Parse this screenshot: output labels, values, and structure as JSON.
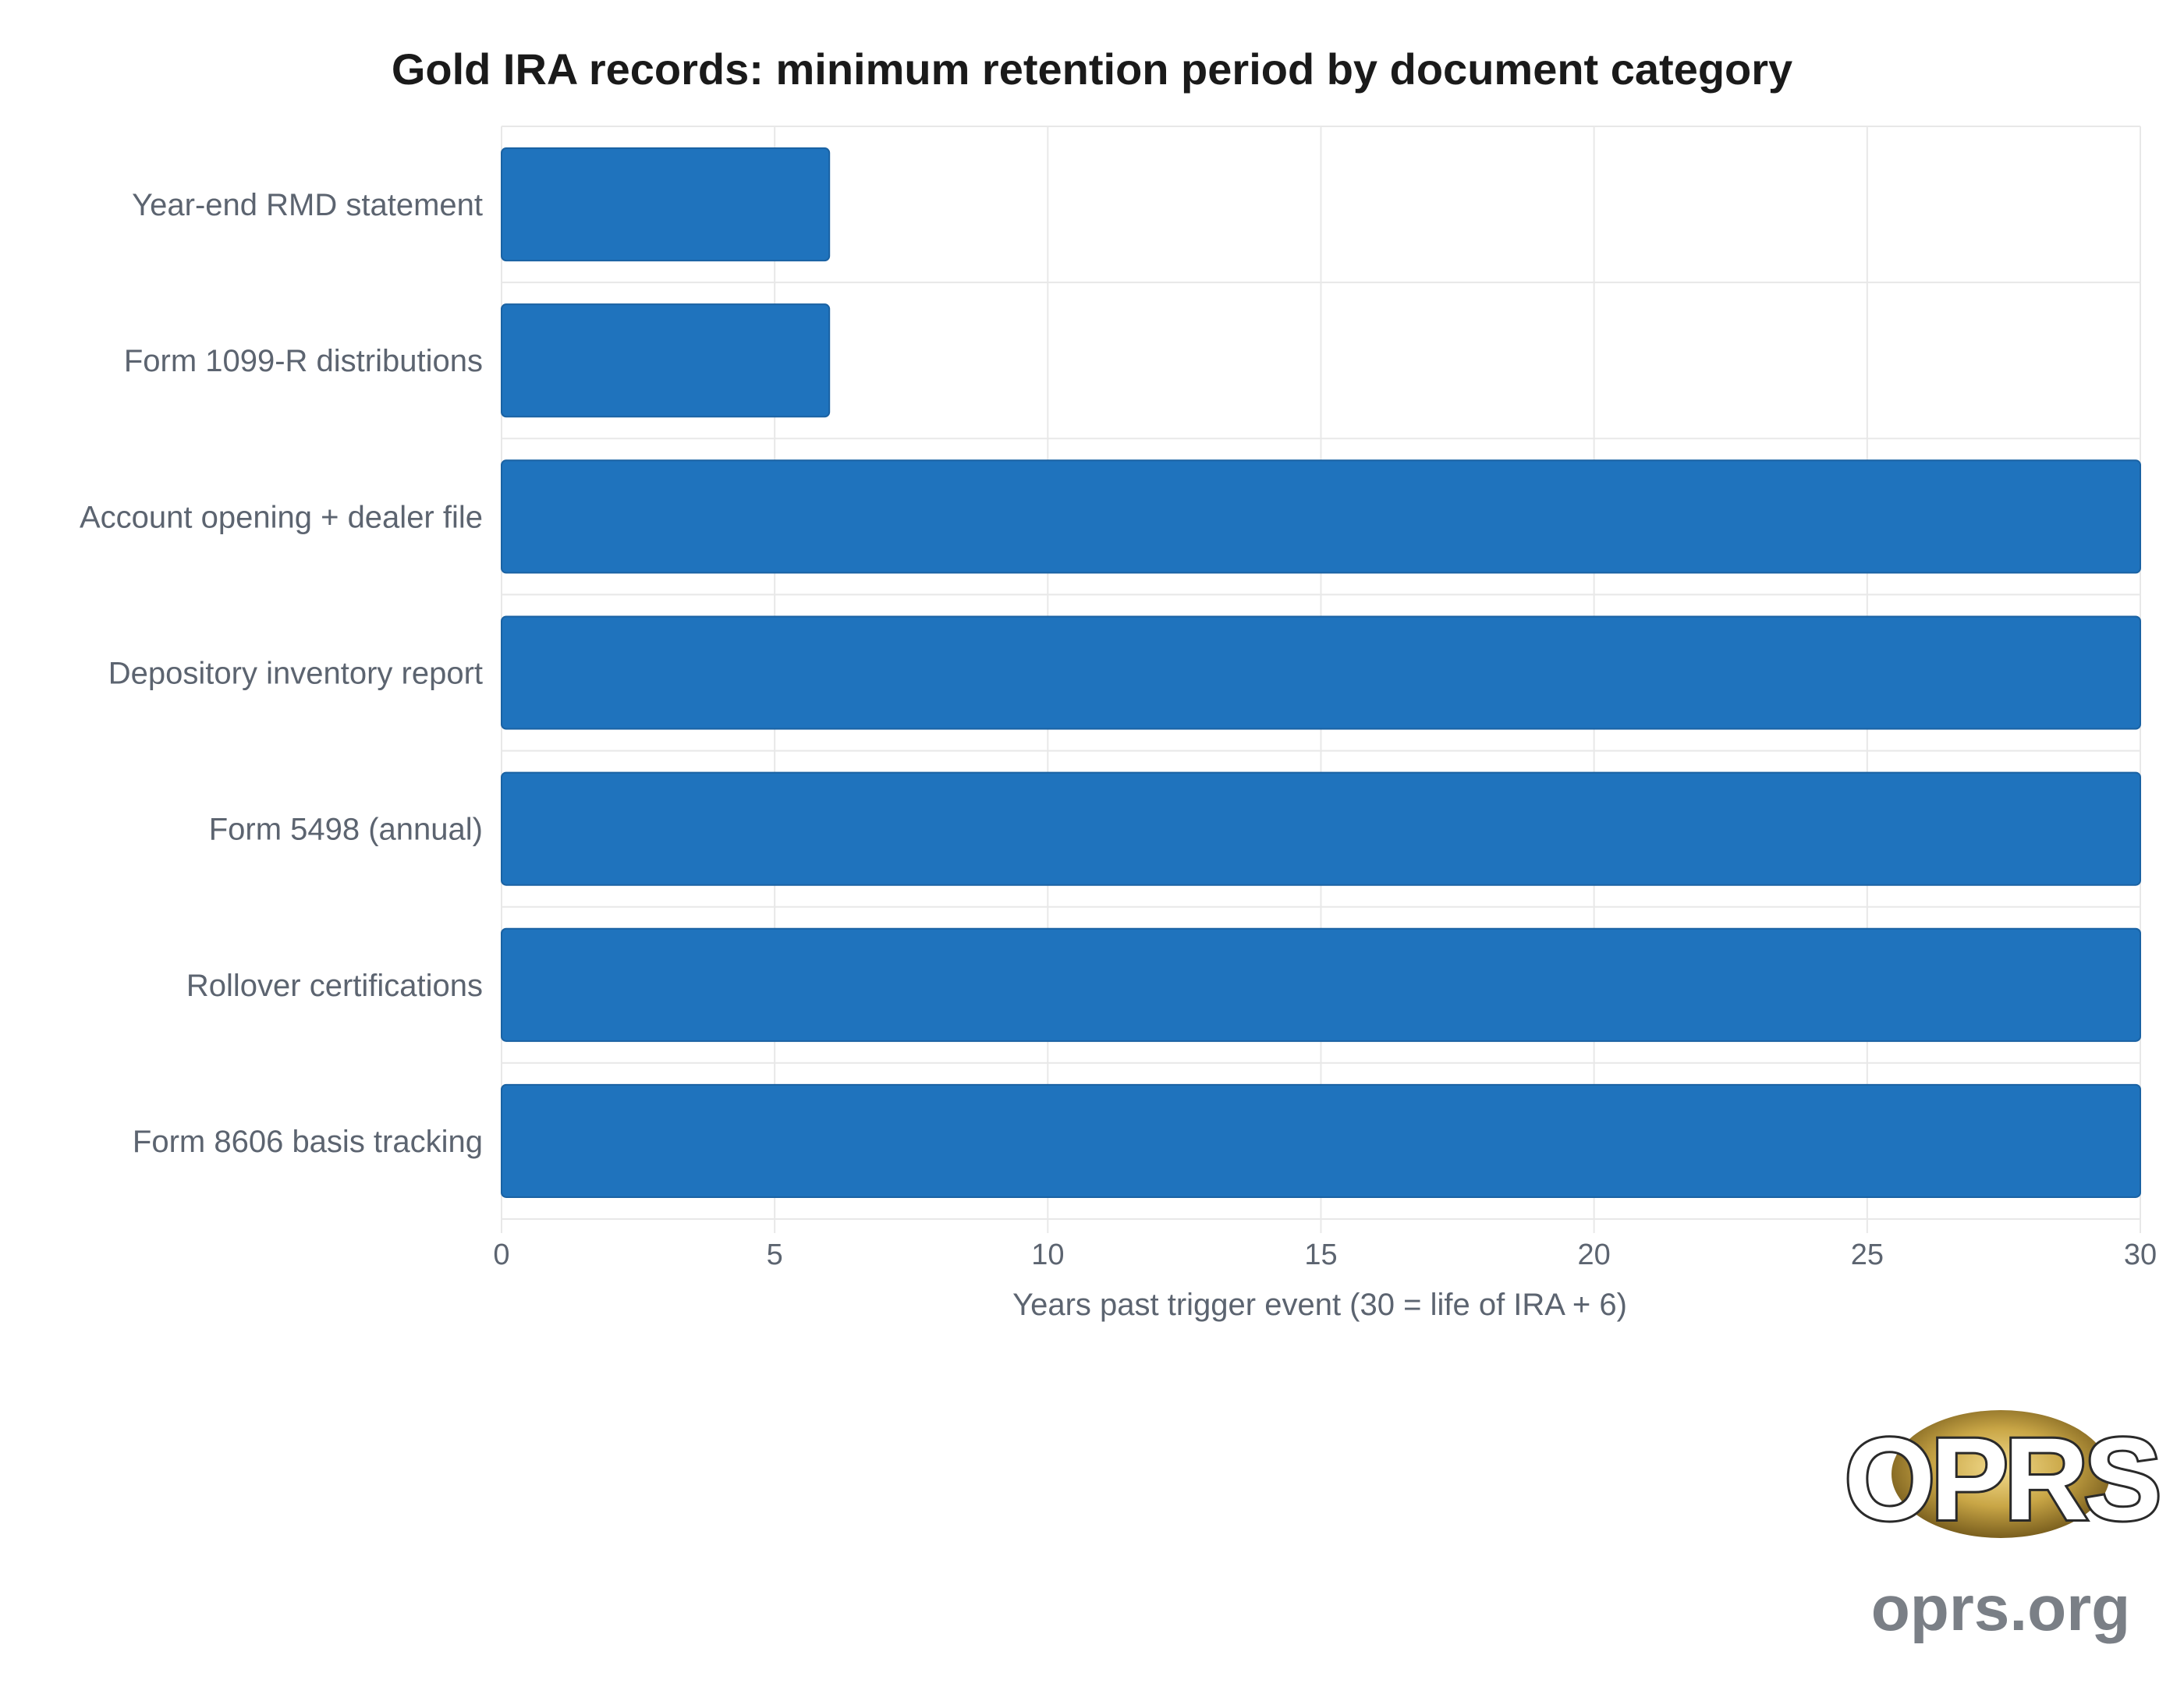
{
  "chart_data": {
    "type": "bar",
    "orientation": "horizontal",
    "title": "Gold IRA records: minimum retention period by document category",
    "xlabel": "Years past trigger event (30 = life of IRA + 6)",
    "ylabel": "",
    "xlim": [
      0,
      30
    ],
    "xticks": [
      0,
      5,
      10,
      15,
      20,
      25,
      30
    ],
    "grid": true,
    "categories": [
      "Year-end RMD statement",
      "Form 1099-R distributions",
      "Account opening + dealer file",
      "Depository inventory report",
      "Form 5498 (annual)",
      "Rollover certifications",
      "Form 8606 basis tracking"
    ],
    "values": [
      6,
      6,
      30,
      30,
      30,
      30,
      30
    ],
    "bar_color": "#1f73bd"
  },
  "branding": {
    "logo_text": "OPRS",
    "site": "oprs.org",
    "logo_gold": "#c9a646"
  }
}
